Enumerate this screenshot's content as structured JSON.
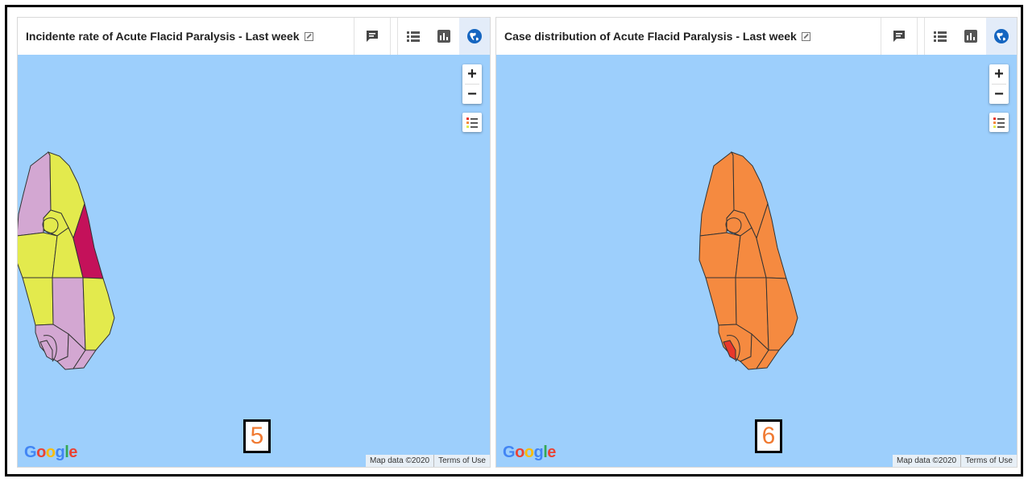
{
  "panels": [
    {
      "id": "incidence",
      "title": "Incidente rate of Acute Flacid Paralysis - Last week",
      "badge": "5",
      "region_colors": {
        "north_left": "#d3a7d2",
        "north_right": "#e3ea4d",
        "center": "#e3ea4d",
        "west_mid": "#e3ea4d",
        "center_mid": "#e3ea4d",
        "east_strip": "#c4115a",
        "sw_mid": "#e3ea4d",
        "south_mid": "#d3a7d2",
        "se_mid": "#e3ea4d",
        "sw_lower": "#d3a7d2",
        "sw_inner": "#d3a7d2",
        "south_tip": "#d3a7d2",
        "se_lower": "#d3a7d2"
      }
    },
    {
      "id": "cases",
      "title": "Case distribution of Acute Flacid Paralysis - Last week",
      "badge": "6",
      "region_colors": {
        "north_left": "#f58a40",
        "north_right": "#f58a40",
        "center": "#f58a40",
        "west_mid": "#f58a40",
        "center_mid": "#f58a40",
        "east_strip": "#f58a40",
        "sw_mid": "#f58a40",
        "south_mid": "#f58a40",
        "se_mid": "#f58a40",
        "sw_lower": "#f58a40",
        "sw_inner": "#e9372b",
        "south_tip": "#f58a40",
        "se_lower": "#f58a40"
      }
    }
  ],
  "map": {
    "zoom_in": "+",
    "zoom_out": "−",
    "attribution": "Map data ©2020",
    "terms": "Terms of Use",
    "google": [
      "G",
      "o",
      "o",
      "g",
      "l",
      "e"
    ],
    "google_colors": [
      "#4285f4",
      "#ea4335",
      "#fbbc05",
      "#4285f4",
      "#34a853",
      "#ea4335"
    ],
    "water_color": "#9dcffc"
  },
  "toolbar": {
    "icons": [
      "interpretation-icon",
      "table-view-icon",
      "chart-view-icon",
      "map-view-icon"
    ],
    "active": "map-view-icon",
    "accent": "#1565c0"
  }
}
